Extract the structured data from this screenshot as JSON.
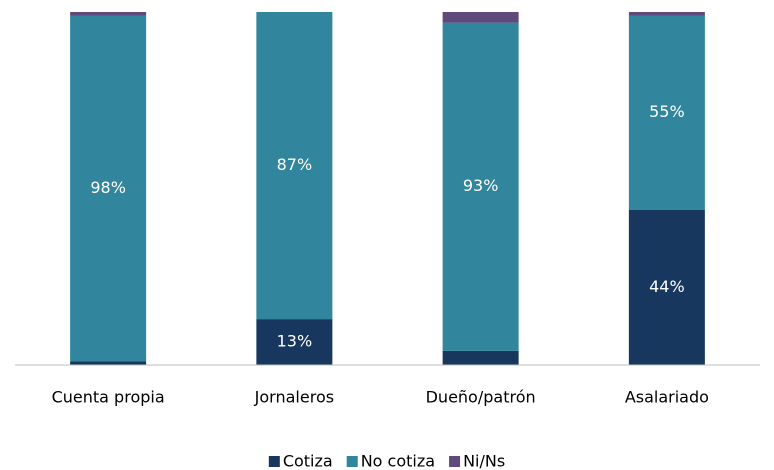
{
  "chart_data": {
    "type": "stacked_bar",
    "categories": [
      "Cuenta propia",
      "Jornaleros",
      "Dueño/patrón",
      "Asalariado"
    ],
    "series": [
      {
        "name": "Cotiza",
        "color": "#17375e",
        "values": [
          1,
          13,
          4,
          44
        ],
        "value_labels": [
          null,
          "13%",
          null,
          "44%"
        ]
      },
      {
        "name": "No cotiza",
        "color": "#31859c",
        "values": [
          98,
          87,
          93,
          55
        ],
        "value_labels": [
          "98%",
          "87%",
          "93%",
          "55%"
        ]
      },
      {
        "name": "Ni/Ns",
        "color": "#604a7b",
        "values": [
          1,
          0,
          3,
          1
        ],
        "value_labels": [
          null,
          null,
          null,
          null
        ]
      }
    ],
    "ylim": [
      0,
      100
    ],
    "legend": "bottom"
  }
}
